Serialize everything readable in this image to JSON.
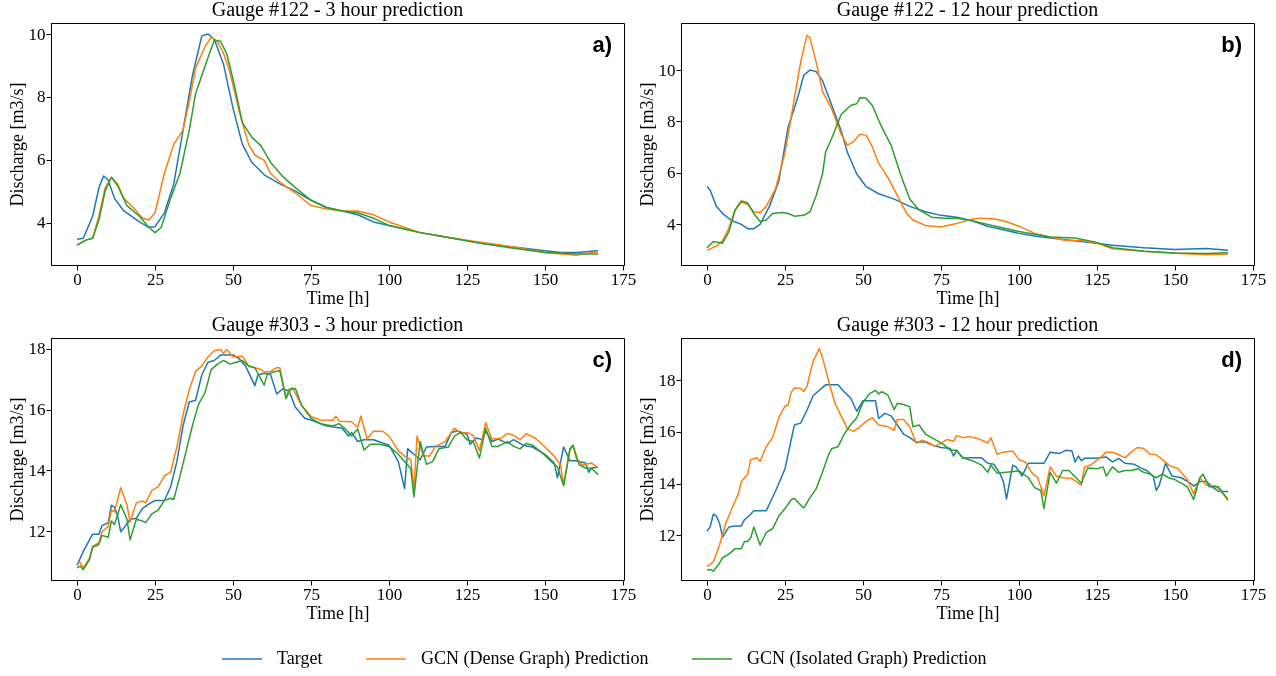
{
  "chart_data": [
    {
      "type": "line",
      "title": "Gauge #122 - 3 hour prediction",
      "xlabel": "Time [h]",
      "ylabel": "Discharge [m3/s]",
      "xlim": [
        -8.35,
        175.35
      ],
      "ylim": [
        2.65,
        10.35
      ],
      "xticks": [
        0,
        25,
        50,
        75,
        100,
        125,
        150,
        175
      ],
      "yticks": [
        4,
        6,
        8,
        10
      ],
      "annotations": [
        "a)"
      ],
      "series": [
        {
          "color": "#1f77b4",
          "x": [
            0,
            2,
            5,
            7,
            8.5,
            10,
            12,
            15,
            20,
            23,
            25,
            28,
            31,
            34,
            37,
            40,
            42,
            44,
            47,
            50,
            53,
            56,
            60,
            65,
            70,
            75,
            80,
            85,
            90,
            95,
            100,
            110,
            120,
            130,
            140,
            150,
            155,
            160,
            167
          ],
          "values": [
            3.47,
            3.5,
            4.2,
            5.1,
            5.48,
            5.35,
            4.77,
            4.37,
            4.02,
            3.85,
            3.87,
            4.31,
            5.23,
            6.95,
            8.68,
            9.94,
            10,
            9.83,
            9.02,
            7.64,
            6.49,
            5.92,
            5.52,
            5.23,
            5.0,
            4.71,
            4.48,
            4.37,
            4.25,
            4.02,
            3.91,
            3.68,
            3.51,
            3.33,
            3.22,
            3.1,
            3.05,
            3.05,
            3.1
          ]
        },
        {
          "color": "#ff7f0e",
          "x": [
            0,
            3,
            5,
            7,
            9,
            11,
            13,
            15,
            18,
            21,
            23,
            25,
            28,
            31,
            34,
            36,
            38,
            41,
            43,
            45,
            47,
            49,
            52,
            55,
            57,
            60,
            62,
            65,
            70,
            75,
            80,
            85,
            90,
            95,
            100,
            110,
            120,
            130,
            140,
            150,
            160,
            167
          ],
          "values": [
            3.28,
            3.45,
            3.5,
            4.2,
            5.1,
            5.44,
            5.23,
            4.77,
            4.48,
            4.14,
            4.08,
            4.31,
            5.57,
            6.49,
            6.95,
            7.87,
            8.91,
            9.6,
            9.89,
            9.77,
            9.37,
            8.79,
            7.53,
            6.49,
            6.15,
            5.98,
            5.57,
            5.29,
            4.94,
            4.54,
            4.43,
            4.37,
            4.37,
            4.25,
            4.02,
            3.68,
            3.51,
            3.37,
            3.22,
            3.05,
            2.96,
            3.07
          ]
        },
        {
          "color": "#2ca02c",
          "x": [
            0,
            3,
            5,
            7,
            9,
            11,
            13,
            16,
            20,
            23,
            25,
            27,
            30,
            33,
            36,
            38,
            40,
            42,
            44,
            46,
            48,
            50,
            53,
            56,
            59,
            62,
            66,
            70,
            75,
            80,
            85,
            90,
            95,
            100,
            110,
            120,
            130,
            140,
            150,
            160,
            167
          ],
          "values": [
            3.28,
            3.45,
            3.5,
            4.08,
            5.0,
            5.44,
            5.17,
            4.54,
            4.2,
            3.85,
            3.68,
            3.85,
            4.77,
            5.57,
            6.95,
            8.1,
            8.68,
            9.25,
            9.8,
            9.77,
            9.37,
            8.56,
            7.18,
            6.72,
            6.44,
            5.92,
            5.46,
            5.11,
            4.71,
            4.48,
            4.37,
            4.31,
            4.14,
            3.91,
            3.68,
            3.51,
            3.33,
            3.18,
            3.05,
            3.01,
            3.0
          ]
        }
      ]
    },
    {
      "type": "line",
      "title": "Gauge #122 - 12 hour prediction",
      "xlabel": "Time [h]",
      "ylabel": "Discharge [m3/s]",
      "xlim": [
        -8.35,
        175.35
      ],
      "ylim": [
        2.42,
        11.83
      ],
      "xticks": [
        0,
        25,
        50,
        75,
        100,
        125,
        150,
        175
      ],
      "yticks": [
        4,
        6,
        8,
        10
      ],
      "annotations": [
        "b)"
      ],
      "series": [
        {
          "color": "#1f77b4",
          "x": [
            0,
            1,
            3,
            5,
            8,
            11,
            13,
            15,
            17,
            20,
            23,
            26,
            29,
            31,
            33,
            35,
            37,
            40,
            43,
            45,
            48,
            51,
            55,
            60,
            65,
            70,
            75,
            80,
            85,
            90,
            95,
            100,
            105,
            110,
            120,
            130,
            140,
            150,
            160,
            167
          ],
          "values": [
            5.47,
            5.33,
            4.7,
            4.42,
            4.14,
            4.0,
            3.83,
            3.83,
            4.0,
            4.7,
            5.68,
            7.78,
            8.9,
            9.8,
            10,
            9.94,
            9.59,
            8.62,
            7.64,
            6.8,
            5.96,
            5.47,
            5.19,
            4.98,
            4.7,
            4.49,
            4.35,
            4.28,
            4.14,
            3.93,
            3.79,
            3.65,
            3.55,
            3.47,
            3.33,
            3.19,
            3.09,
            3.02,
            3.06,
            2.99
          ]
        },
        {
          "color": "#ff7f0e",
          "x": [
            0,
            3,
            5,
            7,
            9,
            11,
            13,
            15,
            17,
            19,
            22,
            25,
            28,
            30,
            32,
            33,
            35,
            37,
            40,
            43,
            45,
            47,
            49,
            51,
            53,
            55,
            58,
            61,
            64,
            66,
            70,
            75,
            80,
            85,
            88,
            92,
            95,
            100,
            105,
            110,
            115,
            120,
            125,
            130,
            140,
            150,
            160,
            167
          ],
          "values": [
            2.99,
            3.16,
            3.37,
            3.86,
            4.56,
            4.87,
            4.77,
            4.49,
            4.46,
            4.7,
            5.4,
            6.8,
            8.9,
            10.3,
            11.34,
            11.24,
            10.3,
            9.17,
            8.48,
            7.5,
            7.08,
            7.22,
            7.5,
            7.47,
            7.01,
            6.38,
            5.82,
            5.12,
            4.42,
            4.17,
            3.96,
            3.9,
            4.03,
            4.21,
            4.24,
            4.21,
            4.14,
            3.93,
            3.65,
            3.51,
            3.37,
            3.37,
            3.27,
            3.05,
            2.95,
            2.88,
            2.82,
            2.85
          ]
        },
        {
          "color": "#2ca02c",
          "x": [
            0,
            2,
            5,
            7,
            9,
            11,
            13,
            15,
            17,
            19,
            21,
            24,
            26,
            28,
            31,
            33,
            35,
            37,
            38,
            40,
            43,
            46,
            48,
            49,
            51,
            53,
            56,
            59,
            62,
            65,
            68,
            72,
            76,
            80,
            85,
            90,
            95,
            100,
            110,
            118,
            125,
            130,
            140,
            150,
            160,
            167
          ],
          "values": [
            3.09,
            3.33,
            3.27,
            3.72,
            4.56,
            4.91,
            4.84,
            4.42,
            4.11,
            4.17,
            4.42,
            4.46,
            4.42,
            4.32,
            4.35,
            4.49,
            5.12,
            5.96,
            6.8,
            7.36,
            8.27,
            8.62,
            8.69,
            8.92,
            8.9,
            8.62,
            7.78,
            7.08,
            5.96,
            4.98,
            4.56,
            4.28,
            4.24,
            4.24,
            4.14,
            4.0,
            3.86,
            3.72,
            3.51,
            3.47,
            3.3,
            3.09,
            2.95,
            2.89,
            2.87,
            2.9
          ]
        }
      ]
    },
    {
      "type": "line",
      "title": "Gauge #303 - 3 hour prediction",
      "xlabel": "Time [h]",
      "ylabel": "Discharge [m3/s]",
      "xlim": [
        -8.35,
        175.35
      ],
      "ylim": [
        10.39,
        18.36
      ],
      "xticks": [
        0,
        25,
        50,
        75,
        100,
        125,
        150,
        175
      ],
      "yticks": [
        12,
        14,
        16,
        18
      ],
      "annotations": [
        "c)"
      ],
      "legend": "bottom",
      "series": [
        {
          "name": "Target",
          "color": "#1f77b4",
          "x": [
            0,
            2,
            5,
            7,
            8,
            10,
            11,
            12,
            13,
            14,
            15,
            17,
            19,
            21,
            23,
            25,
            28,
            30,
            32,
            34,
            36,
            38,
            40,
            42,
            44,
            46,
            50,
            52,
            54,
            57,
            58,
            60,
            62,
            64,
            66,
            68,
            70,
            73,
            75,
            80,
            85,
            87,
            88,
            90,
            92,
            95,
            100,
            103,
            105,
            106,
            108,
            110,
            112,
            115,
            118,
            120,
            122,
            125,
            126,
            128,
            130,
            131,
            133,
            135,
            138,
            140,
            143,
            146,
            150,
            153,
            154,
            156,
            158,
            160,
            163,
            164,
            165,
            167
          ],
          "values": [
            10.87,
            11.33,
            11.9,
            11.9,
            12.18,
            12.28,
            12.85,
            12.79,
            12.51,
            11.98,
            12.1,
            12.39,
            12.42,
            12.75,
            12.89,
            13.01,
            13.01,
            13.46,
            14.29,
            15.48,
            16.25,
            16.31,
            17.14,
            17.56,
            17.62,
            17.8,
            17.8,
            17.68,
            17.44,
            16.79,
            17.14,
            17.2,
            17.17,
            16.52,
            16.69,
            16.61,
            16.08,
            15.72,
            15.66,
            15.46,
            15.39,
            15.13,
            15.25,
            14.95,
            15.01,
            15.01,
            14.83,
            14.29,
            13.4,
            14.71,
            14.53,
            14.35,
            14.77,
            14.79,
            14.79,
            15.25,
            15.3,
            15.19,
            14.86,
            15.07,
            15.01,
            15.3,
            14.95,
            15.03,
            14.89,
            15.01,
            14.83,
            14.77,
            14.53,
            14.24,
            13.76,
            14.77,
            14.32,
            14.32,
            14.24,
            13.94,
            14.08,
            14.1
          ]
        },
        {
          "name": "GCN (Dense Graph) Prediction",
          "color": "#ff7f0e",
          "x": [
            0,
            1,
            2,
            4,
            5,
            7,
            8,
            10,
            11,
            12,
            14,
            16,
            17,
            19,
            21,
            22,
            24,
            26,
            28,
            30,
            32,
            34,
            36,
            38,
            40,
            42,
            44,
            46,
            47,
            48,
            50,
            53,
            55,
            57,
            59,
            60,
            62,
            64,
            65,
            67,
            69,
            72,
            75,
            78,
            82,
            83,
            84,
            88,
            90,
            91,
            93,
            95,
            98,
            100,
            103,
            105,
            107,
            108,
            109,
            111,
            113,
            115,
            118,
            121,
            123,
            125,
            127,
            129,
            131,
            133,
            136,
            138,
            140,
            142,
            144,
            147,
            150,
            153,
            155,
            156,
            158,
            159,
            160,
            162,
            165,
            167
          ],
          "values": [
            10.91,
            10.97,
            10.79,
            11.11,
            11.5,
            11.62,
            11.98,
            12.16,
            12.69,
            12.63,
            13.43,
            12.87,
            12.3,
            12.93,
            12.99,
            12.93,
            13.34,
            13.46,
            13.82,
            13.94,
            14.77,
            15.84,
            16.67,
            17.26,
            17.44,
            17.74,
            17.94,
            17.98,
            17.86,
            17.98,
            17.74,
            17.76,
            17.44,
            17.38,
            17.32,
            17.24,
            17.26,
            17.38,
            17.38,
            16.37,
            16.73,
            16.14,
            15.78,
            15.66,
            15.65,
            15.78,
            15.62,
            15.6,
            15.42,
            15.79,
            15.03,
            15.29,
            15.29,
            15.13,
            14.65,
            14.47,
            14.35,
            13.34,
            15.13,
            14.47,
            14.47,
            14.79,
            14.95,
            15.39,
            15.22,
            15.25,
            15.15,
            14.65,
            15.57,
            15.03,
            15.06,
            15.22,
            15.15,
            15.01,
            15.21,
            15.06,
            14.77,
            14.47,
            14.18,
            13.52,
            14.65,
            14.83,
            14.41,
            14.18,
            14.24,
            14.08
          ]
        },
        {
          "name": "GCN (Isolated Graph) Prediction",
          "color": "#2ca02c",
          "x": [
            0,
            1,
            2,
            4,
            5,
            7,
            8,
            10,
            11,
            12,
            14,
            16,
            17,
            19,
            21,
            22,
            24,
            26,
            28,
            30,
            31,
            33,
            35,
            37,
            39,
            41,
            43,
            45,
            47,
            49,
            51,
            53,
            55,
            57,
            60,
            61,
            63,
            65,
            67,
            68,
            70,
            72,
            75,
            78,
            82,
            84,
            86,
            88,
            90,
            92,
            94,
            97,
            100,
            103,
            105,
            107,
            108,
            110,
            112,
            114,
            116,
            119,
            121,
            123,
            125,
            127,
            129,
            131,
            133,
            135,
            138,
            140,
            142,
            144,
            146,
            149,
            152,
            154,
            156,
            158,
            159,
            161,
            163,
            165,
            167
          ],
          "values": [
            10.79,
            10.85,
            10.73,
            11.06,
            11.47,
            11.56,
            11.86,
            11.8,
            12.33,
            12.22,
            12.87,
            12.39,
            11.71,
            12.39,
            12.33,
            12.28,
            12.57,
            12.69,
            13.01,
            13.08,
            13.04,
            13.82,
            14.65,
            15.48,
            16.19,
            16.55,
            17.32,
            17.5,
            17.62,
            17.5,
            17.56,
            17.62,
            17.44,
            17.38,
            16.81,
            17.17,
            17.24,
            17.29,
            16.37,
            16.67,
            16.7,
            16.14,
            15.72,
            15.54,
            15.46,
            15.54,
            15.36,
            15.13,
            15.36,
            14.67,
            14.86,
            14.86,
            14.79,
            14.53,
            14.29,
            14.06,
            13.13,
            14.95,
            14.2,
            14.29,
            14.71,
            14.77,
            15.13,
            15.25,
            15.01,
            14.95,
            14.41,
            15.39,
            14.79,
            14.79,
            14.95,
            14.79,
            14.71,
            14.89,
            14.83,
            14.59,
            14.29,
            14.12,
            13.49,
            14.71,
            14.83,
            14.18,
            14.08,
            14.06,
            13.86
          ]
        }
      ]
    },
    {
      "type": "line",
      "title": "Gauge #303 - 12 hour prediction",
      "xlabel": "Time [h]",
      "ylabel": "Discharge [m3/s]",
      "xlim": [
        -8.35,
        175.35
      ],
      "ylim": [
        10.28,
        19.63
      ],
      "xticks": [
        0,
        25,
        50,
        75,
        100,
        125,
        150,
        175
      ],
      "yticks": [
        12,
        14,
        16,
        18
      ],
      "annotations": [
        "d)"
      ],
      "series": [
        {
          "color": "#1f77b4",
          "x": [
            0,
            1,
            2,
            3,
            4,
            5,
            7,
            9,
            11,
            12,
            14,
            15,
            19,
            22,
            25,
            27,
            28,
            30,
            32,
            34,
            36,
            38,
            42,
            44,
            46,
            48,
            50,
            54,
            55,
            57,
            59,
            61,
            63,
            65,
            67,
            70,
            72,
            75,
            78,
            79,
            80,
            82,
            84,
            88,
            90,
            92,
            94,
            95,
            96,
            98,
            99,
            101,
            103,
            108,
            110,
            113,
            115,
            117,
            118,
            119,
            120,
            121,
            124,
            126,
            128,
            130,
            132,
            134,
            137,
            139,
            141,
            143,
            144,
            145,
            147,
            149,
            152,
            155,
            156,
            158,
            160,
            162,
            164,
            167
          ],
          "values": [
            12.16,
            12.33,
            12.82,
            12.75,
            12.47,
            11.94,
            12.33,
            12.37,
            12.37,
            12.61,
            12.82,
            12.96,
            12.96,
            13.73,
            14.58,
            15.71,
            16.27,
            16.34,
            16.83,
            17.4,
            17.61,
            17.82,
            17.82,
            17.54,
            17.32,
            16.8,
            17.21,
            17.21,
            16.52,
            16.72,
            16.62,
            16.27,
            15.92,
            15.78,
            15.61,
            15.61,
            15.5,
            15.4,
            15.36,
            15.07,
            15.29,
            14.98,
            15.0,
            15.0,
            14.79,
            14.75,
            14.37,
            14.08,
            13.41,
            14.72,
            14.65,
            14.3,
            14.79,
            14.79,
            15.22,
            15.17,
            15.29,
            15.26,
            14.84,
            15.07,
            14.89,
            14.98,
            14.98,
            15.0,
            15.03,
            14.84,
            14.98,
            14.79,
            14.75,
            14.61,
            14.51,
            14.3,
            13.74,
            13.95,
            14.79,
            14.3,
            14.23,
            14.02,
            13.91,
            14.09,
            14.09,
            13.88,
            13.7,
            13.7
          ]
        },
        {
          "color": "#ff7f0e",
          "x": [
            0,
            2,
            4,
            6,
            8,
            10,
            11,
            13,
            14,
            16,
            17,
            19,
            21,
            23,
            25,
            26,
            27,
            28,
            30,
            31,
            32,
            34,
            36,
            37,
            39,
            41,
            43,
            45,
            47,
            49,
            51,
            53,
            55,
            58,
            60,
            61,
            63,
            65,
            67,
            69,
            71,
            73,
            75,
            77,
            79,
            80,
            82,
            84,
            87,
            90,
            91,
            93,
            95,
            98,
            100,
            102,
            104,
            106,
            108,
            110,
            112,
            114,
            117,
            120,
            121,
            123,
            126,
            128,
            130,
            132,
            134,
            136,
            138,
            140,
            142,
            144,
            146,
            148,
            151,
            154,
            156,
            158,
            160,
            163,
            167
          ],
          "values": [
            10.81,
            10.97,
            11.63,
            12.47,
            13.04,
            13.6,
            14.09,
            14.37,
            14.93,
            15.0,
            14.86,
            15.43,
            15.78,
            16.55,
            17.0,
            17.04,
            17.54,
            17.7,
            17.68,
            17.56,
            17.75,
            18.73,
            19.22,
            18.87,
            17.96,
            17.11,
            16.62,
            16.13,
            16.02,
            16.2,
            16.41,
            16.55,
            16.27,
            16.2,
            16.06,
            16.48,
            16.48,
            16.2,
            15.57,
            15.68,
            15.59,
            15.45,
            15.57,
            15.71,
            15.64,
            15.85,
            15.78,
            15.82,
            15.74,
            15.57,
            15.78,
            15.14,
            15.22,
            15.26,
            14.93,
            14.84,
            14.44,
            14.23,
            13.53,
            14.65,
            14.3,
            14.23,
            14.2,
            13.95,
            14.65,
            14.72,
            15.0,
            15.22,
            15.22,
            15.12,
            15.0,
            15.22,
            15.4,
            15.36,
            15.14,
            15.12,
            14.93,
            14.72,
            14.58,
            14.16,
            13.6,
            14.23,
            13.95,
            13.91,
            13.43
          ]
        },
        {
          "color": "#2ca02c",
          "x": [
            0,
            1,
            2,
            4,
            5,
            7,
            9,
            11,
            12,
            13,
            14,
            15,
            17,
            19,
            21,
            23,
            25,
            27,
            28,
            30,
            31,
            33,
            35,
            37,
            39,
            40,
            42,
            44,
            46,
            48,
            50,
            52,
            54,
            55,
            56,
            58,
            60,
            61,
            63,
            65,
            66,
            68,
            70,
            73,
            76,
            78,
            80,
            82,
            85,
            88,
            90,
            91,
            93,
            96,
            100,
            103,
            105,
            107,
            108,
            110,
            112,
            114,
            116,
            118,
            120,
            122,
            125,
            127,
            128,
            130,
            132,
            134,
            136,
            138,
            140,
            142,
            144,
            146,
            148,
            150,
            152,
            154,
            156,
            158,
            159,
            161,
            164,
            167
          ],
          "values": [
            10.67,
            10.69,
            10.62,
            10.93,
            11.14,
            11.28,
            11.49,
            11.49,
            11.77,
            11.77,
            11.91,
            12.33,
            11.63,
            12.12,
            12.26,
            12.75,
            13.04,
            13.39,
            13.43,
            13.18,
            13.06,
            13.46,
            13.81,
            14.44,
            15.14,
            15.36,
            15.43,
            15.92,
            16.27,
            16.55,
            17.14,
            17.47,
            17.61,
            17.47,
            17.56,
            17.42,
            16.86,
            17.11,
            17.06,
            16.97,
            16.2,
            16.27,
            15.92,
            15.71,
            15.5,
            15.29,
            15.29,
            15.0,
            14.89,
            14.72,
            14.44,
            14.72,
            14.4,
            14.44,
            14.5,
            14.23,
            13.85,
            13.74,
            13.04,
            14.44,
            14.02,
            14.51,
            14.51,
            14.27,
            14.02,
            14.61,
            14.58,
            14.65,
            14.3,
            14.65,
            14.44,
            14.51,
            14.51,
            14.58,
            14.44,
            14.37,
            14.23,
            14.37,
            14.23,
            14.16,
            14.02,
            13.88,
            13.39,
            14.23,
            14.37,
            13.88,
            13.88,
            13.36
          ]
        }
      ]
    }
  ]
}
